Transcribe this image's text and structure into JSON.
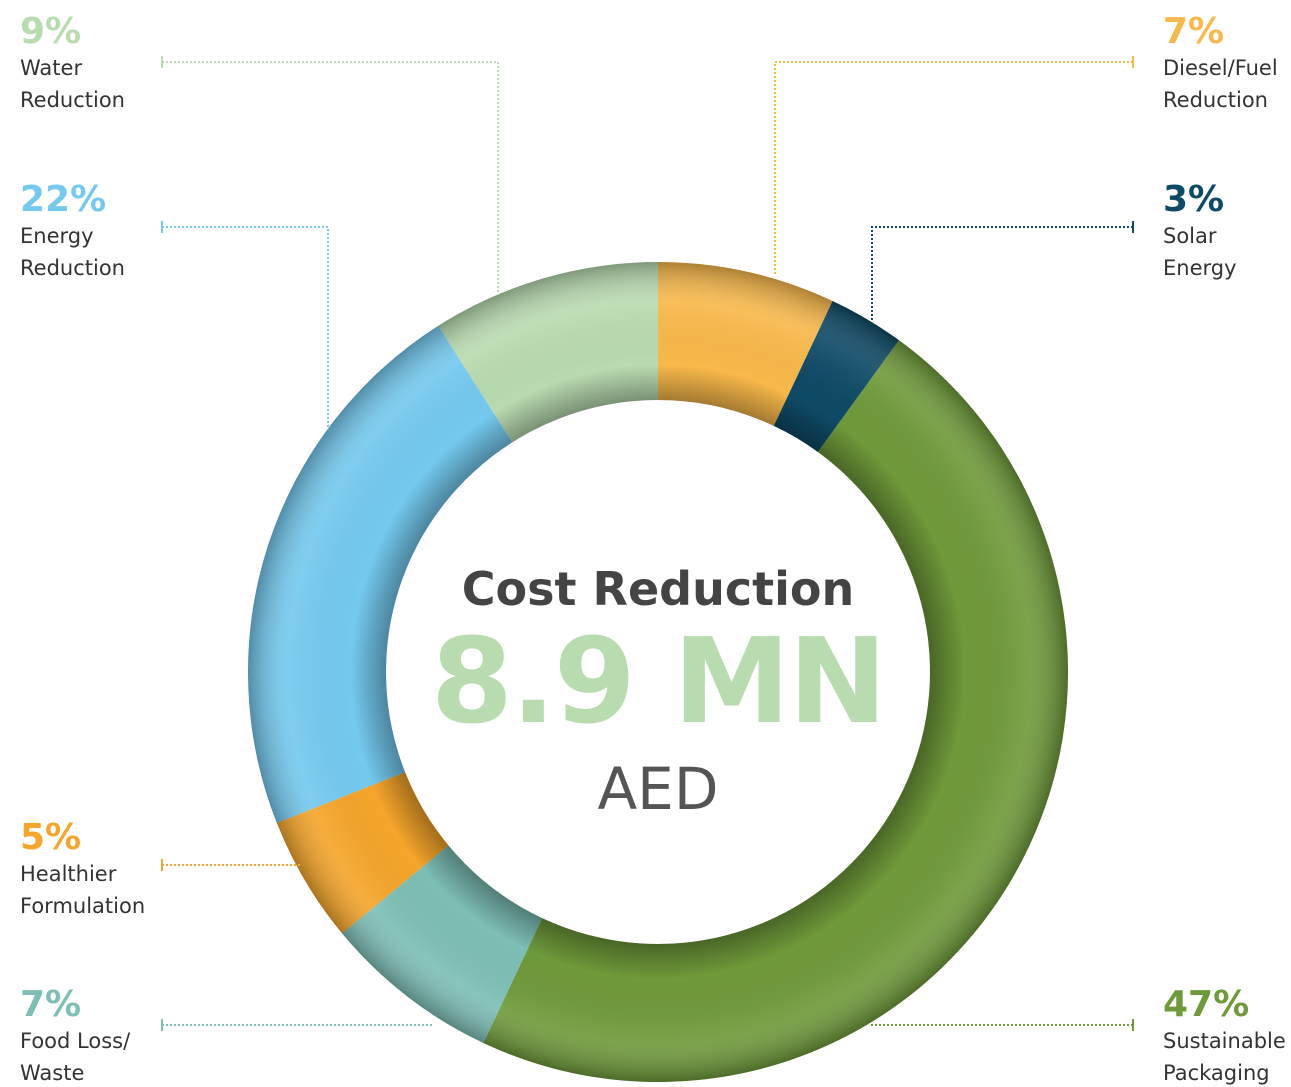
{
  "chart_data": {
    "type": "donut",
    "title": "Cost Reduction",
    "center_value": "8.9 MN",
    "center_unit": "AED",
    "categories": [
      "Diesel/Fuel\nReduction",
      "Solar\nEnergy",
      "Sustainable\nPackaging",
      "Food Loss/\nWaste Reduction",
      "Healthier\nFormulation",
      "Energy\nReduction",
      "Water\nReduction"
    ],
    "values": [
      7,
      3,
      47,
      7,
      5,
      22,
      9
    ],
    "value_labels": [
      "7%",
      "3%",
      "47%",
      "7%",
      "5%",
      "22%",
      "9%"
    ],
    "colors": [
      "#f8b84a",
      "#0e4a66",
      "#6f9a3a",
      "#7dbfb5",
      "#f5a52a",
      "#74c9ef",
      "#b9dbb0"
    ]
  }
}
